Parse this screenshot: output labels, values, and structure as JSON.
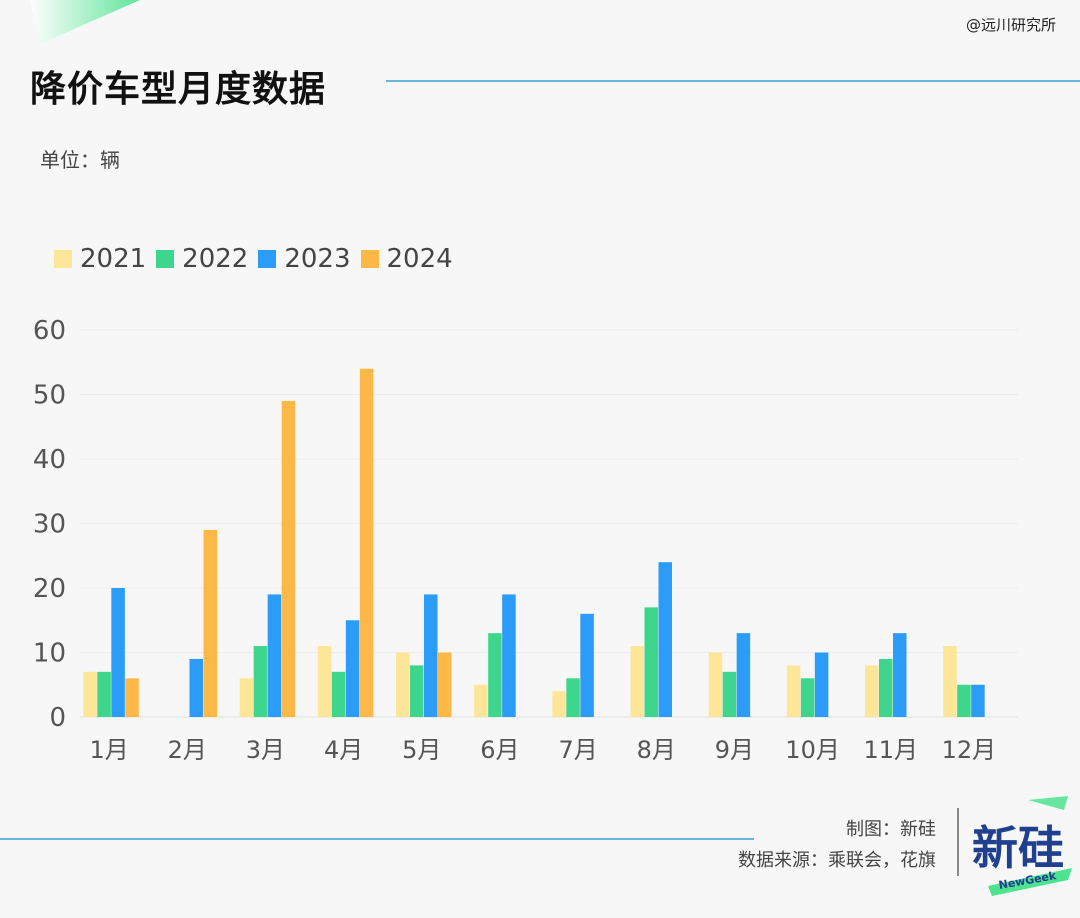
{
  "header": {
    "title": "降价车型月度数据",
    "watermark": "@远川研究所",
    "unit": "单位：辆"
  },
  "footer": {
    "credit_maker": "制图：新硅",
    "credit_source": "数据来源：乘联会，花旗",
    "logo_main": "新硅",
    "logo_sub": "NewGeek"
  },
  "colors": {
    "s2021": "#fde697",
    "s2022": "#3dd68c",
    "s2023": "#2b9cf7",
    "s2024": "#fdb847",
    "accent_line": "#6cb6d9",
    "logo_blue": "#1f3f8f",
    "logo_green": "#4ee38f"
  },
  "chart_data": {
    "type": "bar",
    "title": "降价车型月度数据",
    "ylabel": "单位：辆",
    "xlabel": "",
    "categories": [
      "1月",
      "2月",
      "3月",
      "4月",
      "5月",
      "6月",
      "7月",
      "8月",
      "9月",
      "10月",
      "11月",
      "12月"
    ],
    "series": [
      {
        "name": "2021",
        "values": [
          7,
          0,
          6,
          11,
          10,
          5,
          4,
          11,
          10,
          8,
          8,
          11
        ]
      },
      {
        "name": "2022",
        "values": [
          7,
          0,
          11,
          7,
          8,
          13,
          6,
          17,
          7,
          6,
          9,
          5
        ]
      },
      {
        "name": "2023",
        "values": [
          20,
          9,
          19,
          15,
          19,
          19,
          16,
          24,
          13,
          10,
          13,
          5
        ]
      },
      {
        "name": "2024",
        "values": [
          6,
          29,
          49,
          54,
          10,
          null,
          null,
          null,
          null,
          null,
          null,
          null
        ]
      }
    ],
    "yticks": [
      0,
      10,
      20,
      30,
      40,
      50,
      60
    ],
    "ylim": [
      0,
      60
    ],
    "grid": true,
    "legend": "top-left"
  }
}
